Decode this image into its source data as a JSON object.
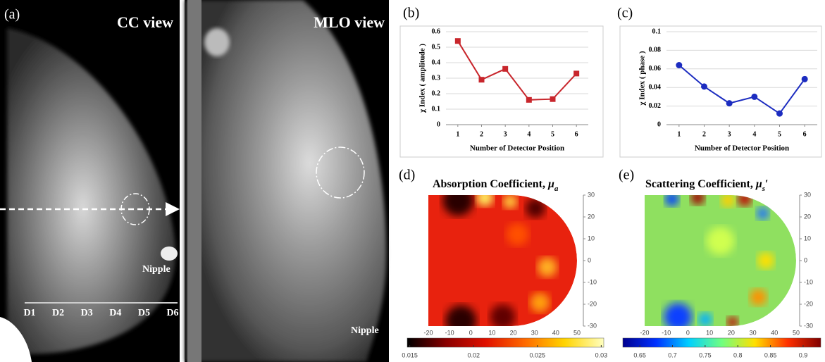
{
  "panel_a": {
    "label": "(a)",
    "title": "CC view",
    "nipple": "Nipple",
    "detectors": [
      "D1",
      "D2",
      "D3",
      "D4",
      "D5",
      "D6"
    ]
  },
  "panel_mlo": {
    "title": "MLO view",
    "nipple": "Nipple"
  },
  "chart_data": [
    {
      "type": "line",
      "label": "(b)",
      "ylabel": "χ Index ( amplitude )",
      "xlabel": "Number of Detector Position",
      "x": [
        1,
        2,
        3,
        4,
        5,
        6
      ],
      "xlim": [
        0.5,
        6.5
      ],
      "xticks": [
        1,
        2,
        3,
        4,
        5,
        6
      ],
      "ylim": [
        0,
        0.6
      ],
      "yticks": [
        0,
        0.1,
        0.2,
        0.3,
        0.4,
        0.5,
        0.6
      ],
      "grid": true,
      "series": [
        {
          "color": "#c8262c",
          "marker": "square",
          "values": [
            0.54,
            0.29,
            0.36,
            0.16,
            0.165,
            0.33
          ]
        }
      ]
    },
    {
      "type": "line",
      "label": "(c)",
      "ylabel": "χ Index ( phase )",
      "xlabel": "Number of Detector Position",
      "x": [
        1,
        2,
        3,
        4,
        5,
        6
      ],
      "xlim": [
        0.5,
        6.5
      ],
      "xticks": [
        1,
        2,
        3,
        4,
        5,
        6
      ],
      "ylim": [
        0,
        0.1
      ],
      "yticks": [
        0,
        0.02,
        0.04,
        0.06,
        0.08,
        0.1
      ],
      "grid": true,
      "series": [
        {
          "color": "#1c2cc0",
          "marker": "circle",
          "values": [
            0.064,
            0.041,
            0.023,
            0.03,
            0.012,
            0.049
          ]
        }
      ]
    }
  ],
  "maps": [
    {
      "label": "(d)",
      "title": "Absorption Coefficient,",
      "symbol": "μ",
      "subscript": "a",
      "colormap": "hot",
      "xlim": [
        -20,
        50
      ],
      "xticks": [
        -20,
        -10,
        0,
        10,
        20,
        30,
        40,
        50
      ],
      "ylim": [
        -30,
        30
      ],
      "yticks": [
        30,
        20,
        10,
        0,
        -10,
        -20,
        -30
      ],
      "clim": [
        0.0148,
        0.0302
      ],
      "cticks": [
        0.015,
        0.02,
        0.025,
        0.03
      ]
    },
    {
      "label": "(e)",
      "title": "Scattering Coefficient,",
      "symbol": "μ",
      "subscript": "s",
      "prime": "′",
      "colormap": "jet",
      "xlim": [
        -20,
        50
      ],
      "xticks": [
        -20,
        -10,
        0,
        10,
        20,
        30,
        40,
        50
      ],
      "ylim": [
        -30,
        30
      ],
      "yticks": [
        30,
        20,
        10,
        0,
        -10,
        -20,
        -30
      ],
      "clim": [
        0.624,
        0.927
      ],
      "cticks": [
        0.65,
        0.7,
        0.75,
        0.8,
        0.85,
        0.9
      ]
    }
  ]
}
